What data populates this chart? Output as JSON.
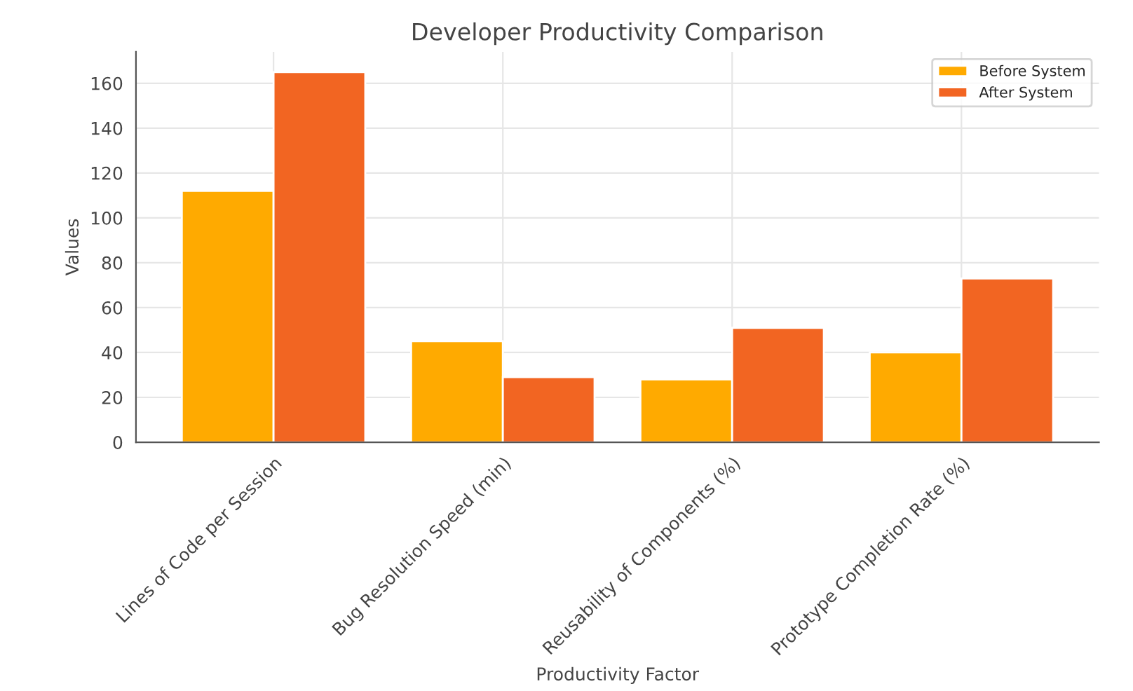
{
  "chart_data": {
    "type": "bar",
    "title": "Developer Productivity Comparison",
    "xlabel": "Productivity Factor",
    "ylabel": "Values",
    "categories": [
      "Lines of Code per Session",
      "Bug Resolution Speed (min)",
      "Reusability of Components (%)",
      "Prototype Completion Rate (%)"
    ],
    "series": [
      {
        "name": "Before System",
        "color": "#ffaa00",
        "values": [
          112,
          45,
          28,
          40
        ]
      },
      {
        "name": "After System",
        "color": "#f26522",
        "values": [
          165,
          29,
          51,
          73
        ]
      }
    ],
    "ylim": [
      0,
      174
    ],
    "yticks": [
      0,
      20,
      40,
      60,
      80,
      100,
      120,
      140,
      160
    ],
    "grid": true,
    "legend": "top right"
  }
}
